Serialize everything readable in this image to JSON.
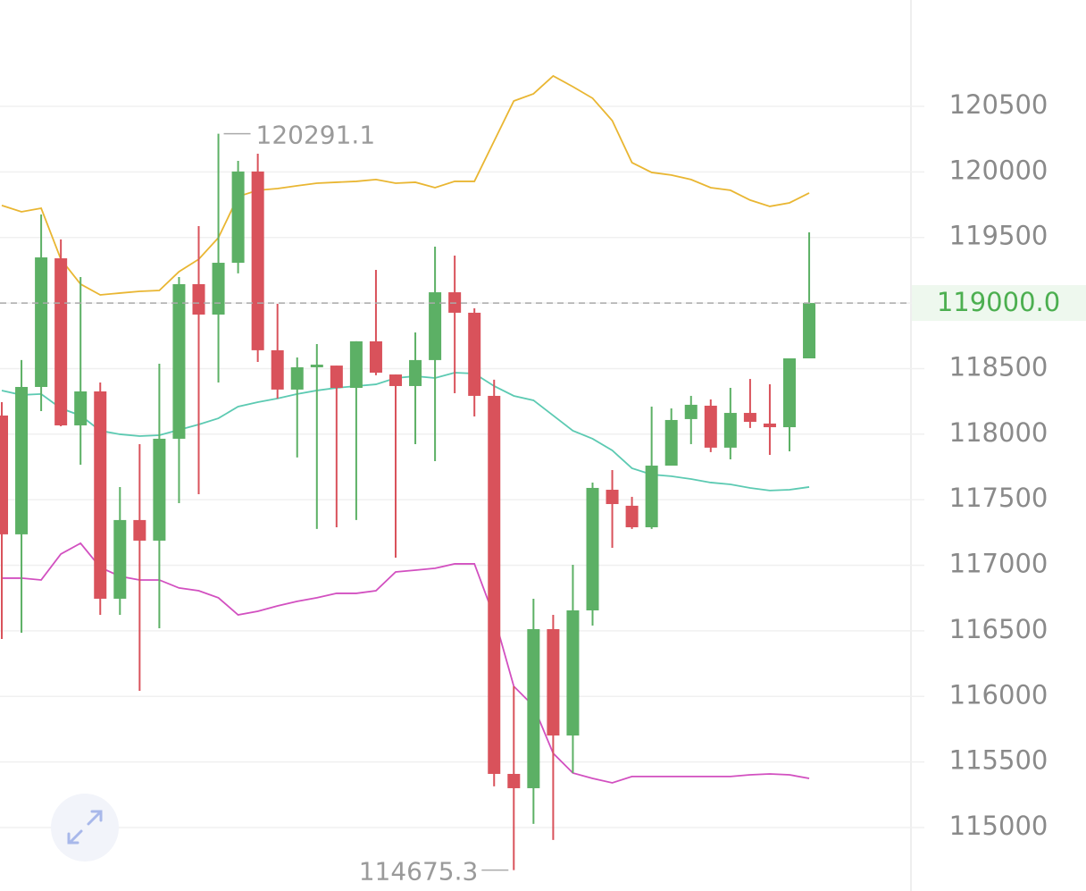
{
  "chart_data": {
    "type": "candlestick",
    "up_color": "#5cb065",
    "down_color": "#d9525b",
    "open": [
      118142,
      117236,
      118360,
      119341,
      118067,
      118326,
      116745,
      117345,
      117188,
      117965,
      119144,
      118912,
      119307,
      120003,
      118640,
      118340,
      118510,
      118523,
      118353,
      118708,
      118455,
      118367,
      118565,
      119082,
      118926,
      118292,
      115409,
      115300,
      116513,
      115702,
      116656,
      117576,
      117454,
      117290,
      117760,
      118115,
      118217,
      117897,
      118162,
      118081,
      118053,
      118578
    ],
    "high": [
      118244,
      118565,
      119675,
      119485,
      119198,
      118394,
      117597,
      117924,
      118537,
      119198,
      119587,
      120291.1,
      120084,
      120139,
      118994,
      118585,
      118687,
      118523,
      118708,
      119253,
      118455,
      118776,
      119430,
      119362,
      118960,
      118415,
      116077,
      116745,
      116622,
      117004,
      117631,
      117726,
      117522,
      118210,
      118196,
      118292,
      118265,
      118353,
      118421,
      118380,
      118578,
      119539
    ],
    "low": [
      116438,
      116486,
      118176,
      118060,
      117767,
      116622,
      116622,
      116043,
      116520,
      117474,
      117542,
      118394,
      119226,
      118551,
      118272,
      117822,
      117277,
      117290,
      117345,
      118449,
      117058,
      117924,
      117794,
      118312,
      118135,
      115314,
      114675.3,
      115028,
      114905,
      115416,
      116540,
      117133,
      117277,
      117277,
      117760,
      117924,
      117863,
      117808,
      118047,
      117842,
      117869,
      118578
    ],
    "close": [
      117236,
      118360,
      119348,
      118067,
      118326,
      116745,
      117345,
      117188,
      117965,
      119144,
      118912,
      119307,
      120003,
      118640,
      118340,
      118510,
      118530,
      118353,
      118708,
      118469,
      118367,
      118565,
      119082,
      118926,
      118292,
      115409,
      115300,
      116513,
      115702,
      116656,
      117590,
      117467,
      117290,
      117760,
      118108,
      118224,
      117897,
      118162,
      118094,
      118053,
      118578,
      119000
    ],
    "bands": [
      {
        "color": "#e9b632",
        "values": [
          119744,
          119696,
          119723,
          119334,
          119144,
          119062,
          119076,
          119089,
          119096,
          119239,
          119334,
          119498,
          119812,
          119860,
          119873,
          119894,
          119914,
          119921,
          119928,
          119942,
          119914,
          119921,
          119880,
          119928,
          119928,
          120235,
          120541,
          120596,
          120732,
          120650,
          120562,
          120391,
          120071,
          119996,
          119976,
          119942,
          119880,
          119860,
          119785,
          119737,
          119764,
          119839
        ]
      },
      {
        "color": "#5ccab2",
        "values": [
          118333,
          118299,
          118306,
          118197,
          118142,
          118026,
          117999,
          117985,
          117992,
          118033,
          118074,
          118121,
          118210,
          118244,
          118272,
          118306,
          118333,
          118353,
          118367,
          118380,
          118428,
          118442,
          118428,
          118469,
          118462,
          118367,
          118292,
          118258,
          118142,
          118026,
          117965,
          117876,
          117740,
          117692,
          117679,
          117658,
          117631,
          117617,
          117590,
          117570,
          117576,
          117597
        ]
      },
      {
        "color": "#d250c0",
        "values": [
          116902,
          116902,
          116888,
          117086,
          117168,
          116984,
          116916,
          116888,
          116888,
          116827,
          116806,
          116752,
          116622,
          116649,
          116690,
          116725,
          116752,
          116786,
          116786,
          116806,
          116949,
          116963,
          116977,
          117011,
          117011,
          116609,
          116077,
          115927,
          115566,
          115416,
          115375,
          115341,
          115389,
          115389,
          115389,
          115389,
          115389,
          115389,
          115402,
          115409,
          115402,
          115375
        ]
      }
    ],
    "last_price": {
      "value": 119000,
      "label": "119000.0"
    },
    "ylim": [
      114516,
      121311
    ],
    "yticks": [
      115000,
      115500,
      116000,
      116500,
      117000,
      117500,
      118000,
      118500,
      119000,
      119500,
      120000,
      120500
    ],
    "grid": true
  }
}
